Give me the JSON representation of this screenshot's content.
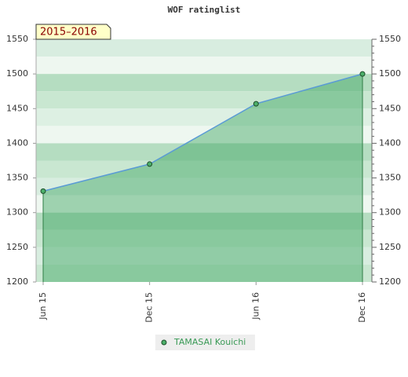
{
  "chart_data": {
    "type": "area",
    "title": "WOF ratinglist",
    "annotation": "2015–2016",
    "categories": [
      "Jun 15",
      "Dec 15",
      "Jun 16",
      "Dec 16"
    ],
    "series": [
      {
        "name": "TAMASAI Kouichi",
        "color": "#5a9bd5",
        "values": [
          1331,
          1370,
          1457,
          1500
        ]
      }
    ],
    "ylim": [
      1200,
      1550
    ],
    "yticks": [
      1200,
      1250,
      1300,
      1350,
      1400,
      1450,
      1500,
      1550
    ],
    "y2lim": [
      1200,
      1550
    ],
    "y2ticks": [
      1200,
      1250,
      1300,
      1350,
      1400,
      1450,
      1500,
      1550
    ]
  }
}
